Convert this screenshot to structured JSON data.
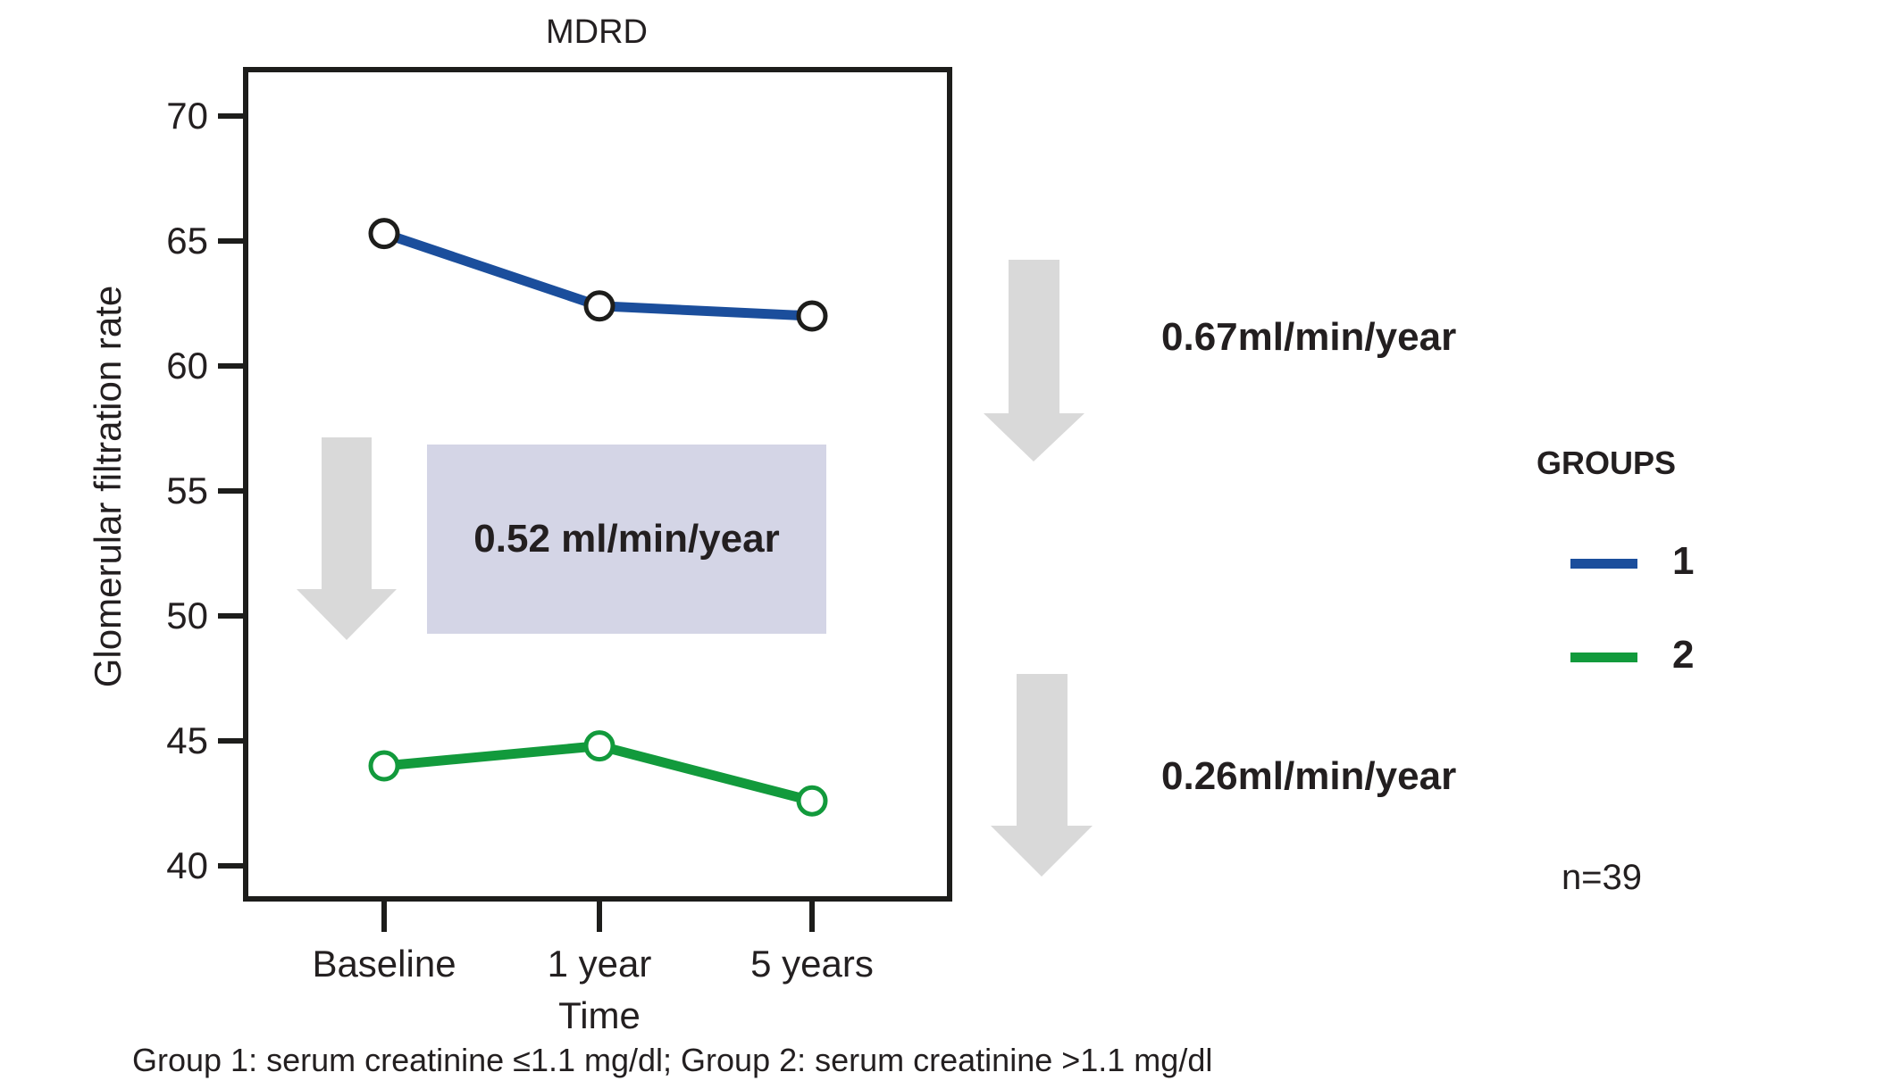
{
  "chart_data": {
    "type": "line",
    "title": "MDRD",
    "xlabel": "Time",
    "ylabel": "Glomerular filtration rate",
    "categories": [
      "Baseline",
      "1 year",
      "5 years"
    ],
    "series": [
      {
        "name": "1",
        "color": "#1b4e9c",
        "marker_stroke": "#1d1d1b",
        "values": [
          65.3,
          62.4,
          62.0
        ]
      },
      {
        "name": "2",
        "color": "#129a3c",
        "marker_stroke": "#129a3c",
        "values": [
          44.0,
          44.8,
          42.6
        ]
      }
    ],
    "yticks": [
      70,
      65,
      60,
      55,
      50,
      45,
      40
    ],
    "ylim": [
      38.5,
      71.8
    ],
    "grid": false,
    "legend_position": "right",
    "marker": "open-circle"
  },
  "annotations": {
    "group1_rate": "0.67ml/min/year",
    "overall_rate": "0.52 ml/min/year",
    "group2_rate": "0.26ml/min/year",
    "sample_size": "n=39"
  },
  "legend": {
    "title": "GROUPS",
    "items": [
      {
        "label": "1",
        "color": "#1b4e9c"
      },
      {
        "label": "2",
        "color": "#129a3c"
      }
    ]
  },
  "footnote": "Group 1: serum creatinine ≤1.1 mg/dl; Group 2: serum creatinine >1.1 mg/dl",
  "colors": {
    "axis": "#1d1d1b",
    "text": "#231f20",
    "arrow": "#d9d9d9",
    "highlight_box": "#d4d5e6"
  }
}
